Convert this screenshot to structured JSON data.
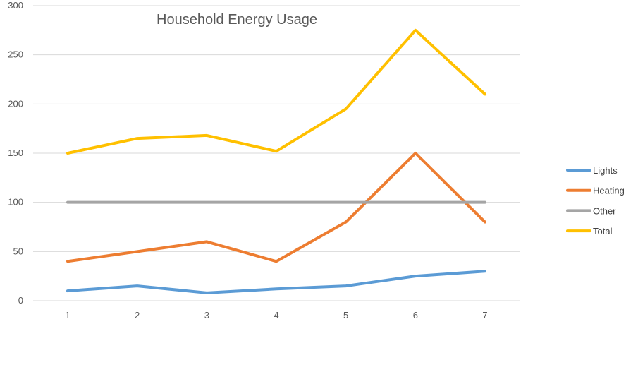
{
  "chart_data": {
    "type": "line",
    "title": "Household Energy Usage",
    "xlabel": "",
    "ylabel": "",
    "categories": [
      "1",
      "2",
      "3",
      "4",
      "5",
      "6",
      "7"
    ],
    "ylim": [
      0,
      300
    ],
    "yticks": [
      0,
      50,
      100,
      150,
      200,
      250,
      300
    ],
    "grid": true,
    "legend_position": "right",
    "series": [
      {
        "name": "Lights",
        "color": "#5b9bd5",
        "values": [
          10,
          15,
          8,
          12,
          15,
          25,
          30
        ]
      },
      {
        "name": "Heating",
        "color": "#ed7d31",
        "values": [
          40,
          50,
          60,
          40,
          80,
          150,
          80
        ]
      },
      {
        "name": "Other",
        "color": "#a5a5a5",
        "values": [
          100,
          100,
          100,
          100,
          100,
          100,
          100
        ]
      },
      {
        "name": "Total",
        "color": "#ffc000",
        "values": [
          150,
          165,
          168,
          152,
          195,
          275,
          210
        ]
      }
    ]
  }
}
